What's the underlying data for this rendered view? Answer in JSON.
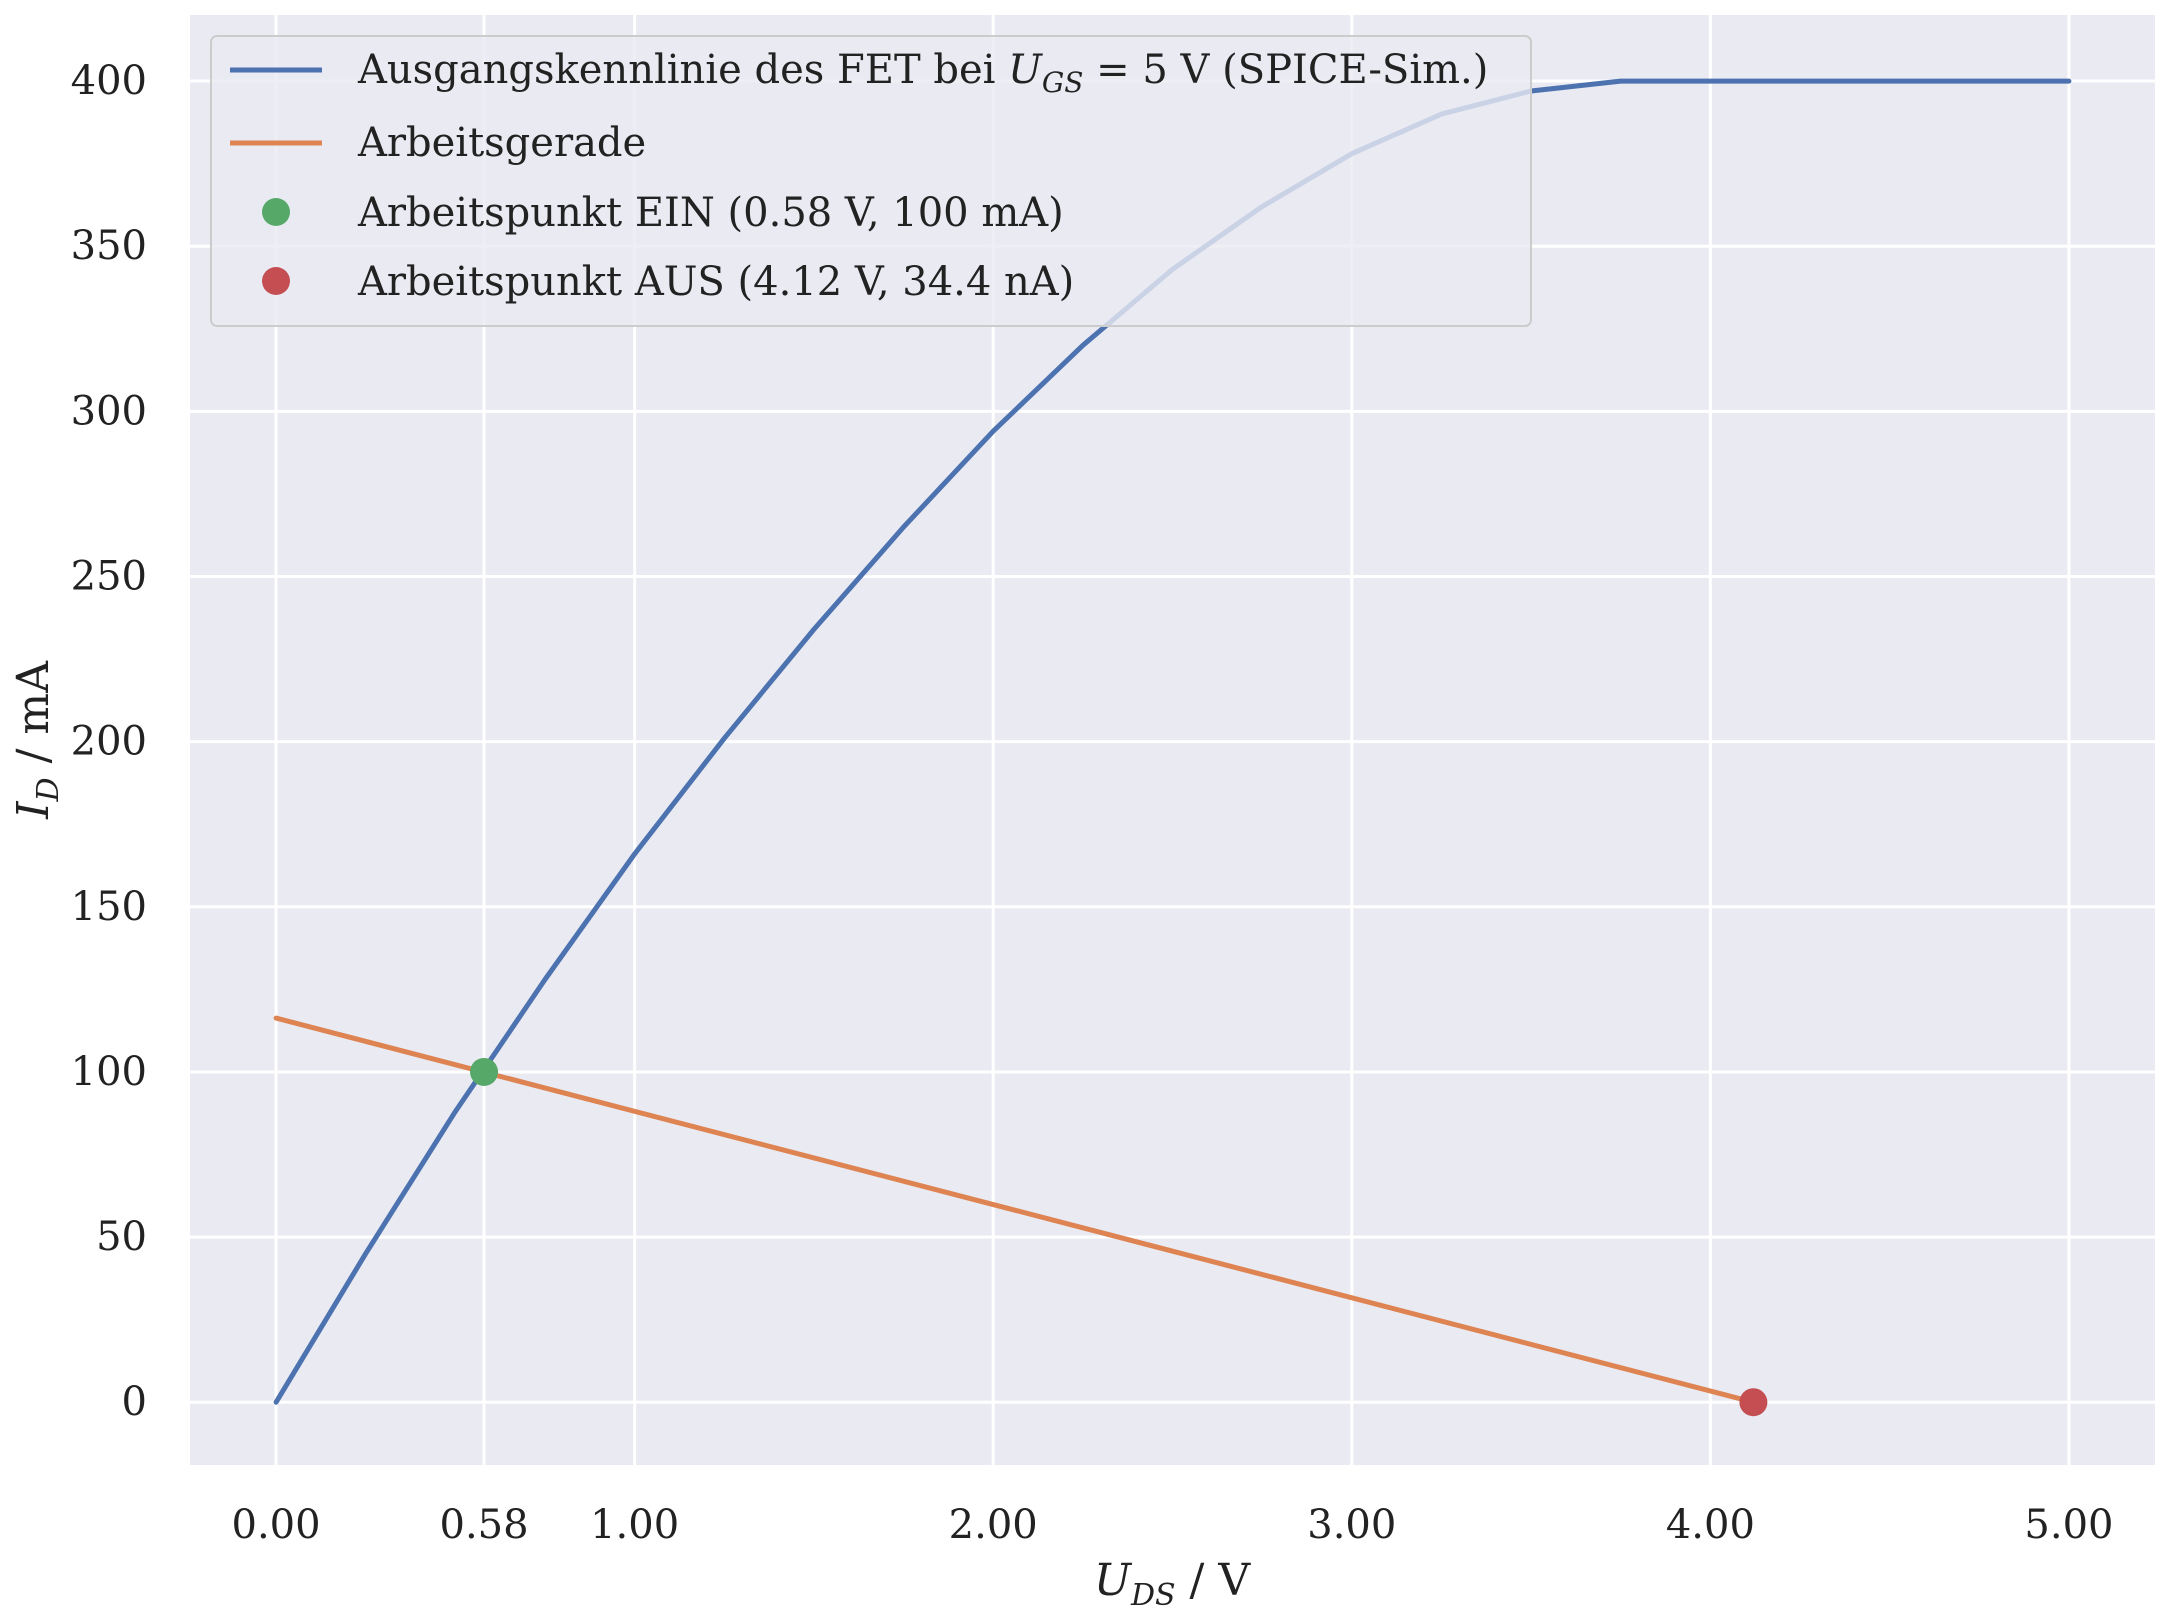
{
  "chart_data": {
    "type": "line",
    "xlabel": {
      "var": "U",
      "sub": "DS",
      "unit": " / V"
    },
    "ylabel": {
      "var": "I",
      "sub": "D",
      "unit": " / mA"
    },
    "xlim": [
      -0.24,
      5.24
    ],
    "ylim": [
      -19,
      420
    ],
    "xticks": [
      {
        "v": 0,
        "label": "0.00"
      },
      {
        "v": 0.58,
        "label": "0.58"
      },
      {
        "v": 1,
        "label": "1.00"
      },
      {
        "v": 2,
        "label": "2.00"
      },
      {
        "v": 3,
        "label": "3.00"
      },
      {
        "v": 4,
        "label": "4.00"
      },
      {
        "v": 5,
        "label": "5.00"
      }
    ],
    "yticks": [
      {
        "v": 0,
        "label": "0"
      },
      {
        "v": 50,
        "label": "50"
      },
      {
        "v": 100,
        "label": "100"
      },
      {
        "v": 150,
        "label": "150"
      },
      {
        "v": 200,
        "label": "200"
      },
      {
        "v": 250,
        "label": "250"
      },
      {
        "v": 300,
        "label": "300"
      },
      {
        "v": 350,
        "label": "350"
      },
      {
        "v": 400,
        "label": "400"
      }
    ],
    "grid": true,
    "legend_position": "top-left",
    "series": [
      {
        "name": "Ausgangskennlinie des FET bei U_GS = 5 V (SPICE-Sim.)",
        "kind": "line",
        "color": "#4c72b0",
        "x": [
          0,
          0.25,
          0.5,
          0.75,
          1.0,
          1.25,
          1.5,
          1.75,
          2.0,
          2.25,
          2.5,
          2.75,
          3.0,
          3.25,
          3.5,
          3.75,
          4.0,
          4.25,
          4.5,
          4.75,
          5.0
        ],
        "y": [
          0,
          45,
          88,
          128,
          166,
          201,
          234,
          265,
          294,
          320,
          343,
          362,
          378,
          390,
          397,
          400,
          400,
          400,
          400,
          400,
          400
        ]
      },
      {
        "name": "Arbeitsgerade",
        "kind": "line",
        "color": "#dd8452",
        "x": [
          0,
          4.12
        ],
        "y": [
          116.3,
          0
        ]
      },
      {
        "name": "Arbeitspunkt EIN (0.58 V, 100 mA)",
        "kind": "point",
        "color": "#55a868",
        "x": [
          0.58
        ],
        "y": [
          100
        ]
      },
      {
        "name": "Arbeitspunkt AUS (4.12 V, 34.4 nA)",
        "kind": "point",
        "color": "#c44e52",
        "x": [
          4.12
        ],
        "y": [
          0
        ]
      }
    ],
    "legend": [
      {
        "kind": "line",
        "color": "#4c72b0",
        "pre": "Ausgangskennlinie des FET bei ",
        "var": "U",
        "sub": "GS",
        "post": " = 5 V (SPICE-Sim.)"
      },
      {
        "kind": "line",
        "color": "#dd8452",
        "text": "Arbeitsgerade"
      },
      {
        "kind": "point",
        "color": "#55a868",
        "text": "Arbeitspunkt EIN (0.58 V, 100 mA)"
      },
      {
        "kind": "point",
        "color": "#c44e52",
        "text": "Arbeitspunkt AUS (4.12 V, 34.4 nA)"
      }
    ],
    "colors": {
      "background": "#eaeaf2",
      "grid": "#ffffff",
      "legend_border": "#cccccc"
    }
  }
}
